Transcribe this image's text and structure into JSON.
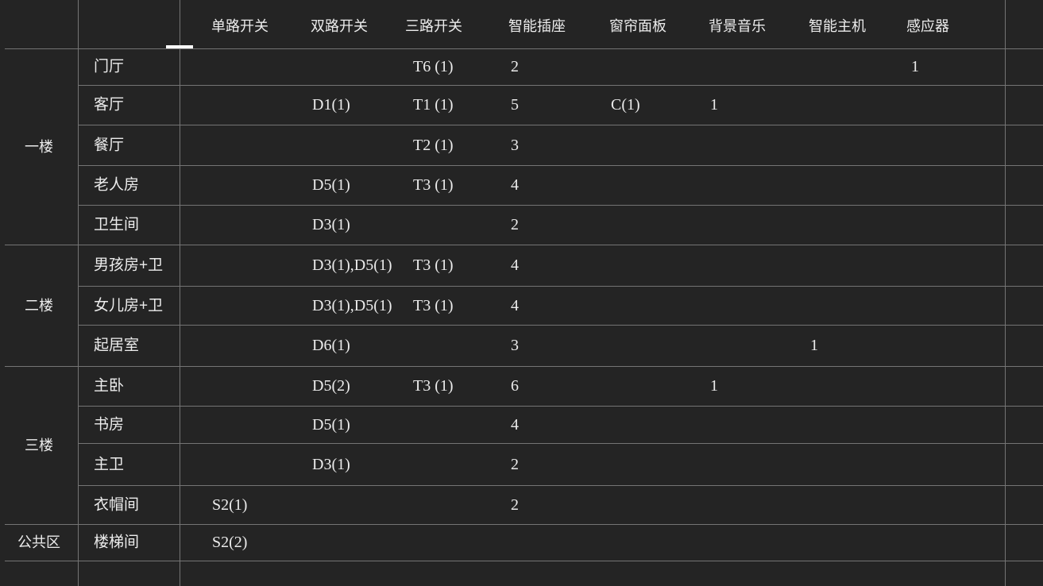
{
  "colors": {
    "background": "#242424",
    "grid_line": "#747474",
    "text": "#ececec",
    "resize_indicator": "#ffffff"
  },
  "table": {
    "column_headers": [
      "单路开关",
      "双路开关",
      "三路开关",
      "智能插座",
      "窗帘面板",
      "背景音乐",
      "智能主机",
      "感应器"
    ],
    "groups": [
      {
        "label": "一楼",
        "rows": [
          {
            "room": "门厅",
            "values": [
              "",
              "",
              "T6 (1)",
              "2",
              "",
              "",
              "",
              "1"
            ]
          },
          {
            "room": "客厅",
            "values": [
              "",
              "D1(1)",
              "T1 (1)",
              "5",
              "C(1)",
              "1",
              "",
              ""
            ]
          },
          {
            "room": "餐厅",
            "values": [
              "",
              "",
              "T2 (1)",
              "3",
              "",
              "",
              "",
              ""
            ]
          },
          {
            "room": "老人房",
            "values": [
              "",
              "D5(1)",
              "T3 (1)",
              "4",
              "",
              "",
              "",
              ""
            ]
          },
          {
            "room": "卫生间",
            "values": [
              "",
              "D3(1)",
              "",
              "2",
              "",
              "",
              "",
              ""
            ]
          }
        ]
      },
      {
        "label": "二楼",
        "rows": [
          {
            "room": "男孩房+卫",
            "values": [
              "",
              "D3(1),D5(1)",
              "T3 (1)",
              "4",
              "",
              "",
              "",
              ""
            ]
          },
          {
            "room": "女儿房+卫",
            "values": [
              "",
              "D3(1),D5(1)",
              "T3 (1)",
              "4",
              "",
              "",
              "",
              ""
            ]
          },
          {
            "room": "起居室",
            "values": [
              "",
              "D6(1)",
              "",
              "3",
              "",
              "",
              "1",
              ""
            ]
          }
        ]
      },
      {
        "label": "三楼",
        "rows": [
          {
            "room": "主卧",
            "values": [
              "",
              "D5(2)",
              "T3 (1)",
              "6",
              "",
              "1",
              "",
              ""
            ]
          },
          {
            "room": "书房",
            "values": [
              "",
              "D5(1)",
              "",
              "4",
              "",
              "",
              "",
              ""
            ]
          },
          {
            "room": "主卫",
            "values": [
              "",
              "D3(1)",
              "",
              "2",
              "",
              "",
              "",
              ""
            ]
          },
          {
            "room": "衣帽间",
            "values": [
              "S2(1)",
              "",
              "",
              "2",
              "",
              "",
              "",
              ""
            ]
          }
        ]
      },
      {
        "label": "公共区",
        "rows": [
          {
            "room": "楼梯间",
            "values": [
              "S2(2)",
              "",
              "",
              "",
              "",
              "",
              "",
              ""
            ]
          }
        ]
      }
    ]
  }
}
